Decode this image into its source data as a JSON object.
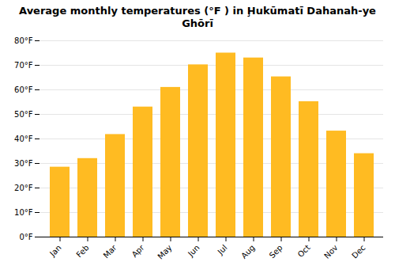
{
  "chart_data": {
    "type": "bar",
    "title": "Average monthly temperatures (°F ) in Ḩukūmatī Dahanah-ye Ghōrī",
    "categories": [
      "Jan",
      "Feb",
      "Mar",
      "Apr",
      "May",
      "Jun",
      "Jul",
      "Aug",
      "Sep",
      "Oct",
      "Nov",
      "Dec"
    ],
    "values": [
      28.5,
      32.0,
      41.8,
      53.0,
      61.0,
      70.2,
      75.0,
      73.0,
      65.3,
      55.2,
      43.2,
      34.0
    ],
    "color": "#FFBB22",
    "ylim": [
      0,
      80
    ],
    "yticks": [
      {
        "value": 0,
        "label": "0°F"
      },
      {
        "value": 10,
        "label": "10°F"
      },
      {
        "value": 20,
        "label": "20°F"
      },
      {
        "value": 30,
        "label": "30°F"
      },
      {
        "value": 40,
        "label": "40°F"
      },
      {
        "value": 50,
        "label": "50°F"
      },
      {
        "value": 60,
        "label": "60°F"
      },
      {
        "value": 70,
        "label": "70°F"
      },
      {
        "value": 80,
        "label": "80°F"
      }
    ],
    "grid": true
  }
}
